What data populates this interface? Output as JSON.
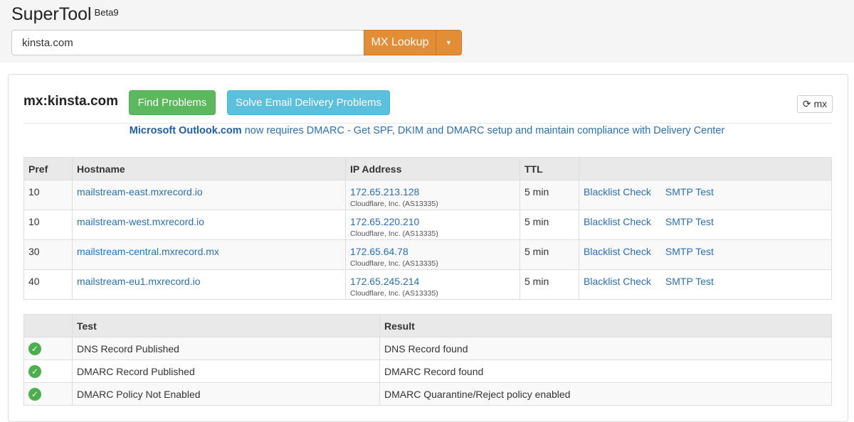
{
  "header": {
    "brand": "SuperTool",
    "badge": "Beta9",
    "search_value": "kinsta.com",
    "lookup_label": "MX Lookup"
  },
  "panel": {
    "title": "mx:kinsta.com",
    "find_label": "Find Problems",
    "solve_label": "Solve Email Delivery Problems",
    "refresh_label": "mx",
    "notice_link": "Microsoft Outlook.com",
    "notice_text": " now requires DMARC - Get SPF, DKIM and DMARC setup and maintain compliance with Delivery Center"
  },
  "mx_table": {
    "headers": [
      "Pref",
      "Hostname",
      "IP Address",
      "TTL",
      ""
    ],
    "rows": [
      {
        "pref": "10",
        "host": "mailstream-east.mxrecord.io",
        "ip": "172.65.213.128",
        "asn": "Cloudflare, Inc. (AS13335)",
        "ttl": "5 min",
        "a1": "Blacklist Check",
        "a2": "SMTP Test"
      },
      {
        "pref": "10",
        "host": "mailstream-west.mxrecord.io",
        "ip": "172.65.220.210",
        "asn": "Cloudflare, Inc. (AS13335)",
        "ttl": "5 min",
        "a1": "Blacklist Check",
        "a2": "SMTP Test"
      },
      {
        "pref": "30",
        "host": "mailstream-central.mxrecord.mx",
        "ip": "172.65.64.78",
        "asn": "Cloudflare, Inc. (AS13335)",
        "ttl": "5 min",
        "a1": "Blacklist Check",
        "a2": "SMTP Test"
      },
      {
        "pref": "40",
        "host": "mailstream-eu1.mxrecord.io",
        "ip": "172.65.245.214",
        "asn": "Cloudflare, Inc. (AS13335)",
        "ttl": "5 min",
        "a1": "Blacklist Check",
        "a2": "SMTP Test"
      }
    ]
  },
  "test_table": {
    "headers": [
      "",
      "Test",
      "Result"
    ],
    "rows": [
      {
        "status": "pass",
        "test": "DNS Record Published",
        "result": "DNS Record found"
      },
      {
        "status": "pass",
        "test": "DMARC Record Published",
        "result": "DMARC Record found"
      },
      {
        "status": "pass",
        "test": "DMARC Policy Not Enabled",
        "result": "DMARC Quarantine/Reject policy enabled"
      }
    ]
  },
  "colors": {
    "accent_orange": "#e38d37",
    "success": "#5cb85c",
    "info": "#5bc0de",
    "link": "#2a6fb3"
  }
}
